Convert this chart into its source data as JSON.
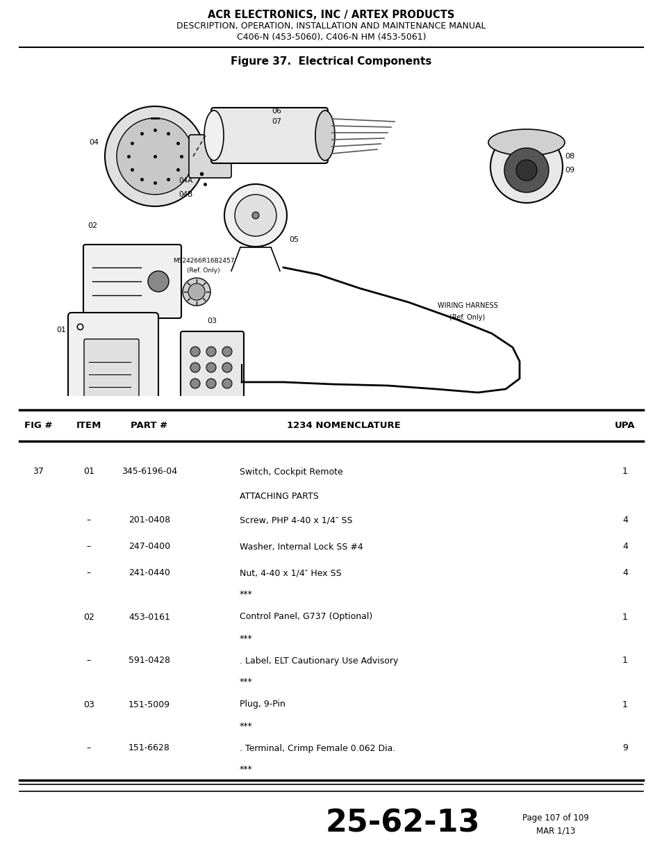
{
  "header_line1": "ACR ELECTRONICS, INC / ARTEX PRODUCTS",
  "header_line2": "DESCRIPTION, OPERATION, INSTALLATION AND MAINTENANCE MANUAL",
  "header_line3": "C406-N (453-5060), C406-N HM (453-5061)",
  "figure_title": "Figure 37.  Electrical Components",
  "table_headers": [
    "FIG #",
    "ITEM",
    "PART #",
    "1234 NOMENCLATURE",
    "UPA"
  ],
  "table_rows": [
    [
      "37",
      "01",
      "345-6196-04",
      "Switch, Cockpit Remote",
      "1"
    ],
    [
      "",
      "",
      "",
      "ATTACHING PARTS",
      ""
    ],
    [
      "",
      "–",
      "201-0408",
      "Screw, PHP 4-40 x 1/4″ SS",
      "4"
    ],
    [
      "",
      "–",
      "247-0400",
      "Washer, Internal Lock SS #4",
      "4"
    ],
    [
      "",
      "–",
      "241-0440",
      "Nut, 4-40 x 1/4″ Hex SS",
      "4"
    ],
    [
      "",
      "",
      "",
      "***",
      ""
    ],
    [
      "",
      "02",
      "453-0161",
      "Control Panel, G737 (Optional)",
      "1"
    ],
    [
      "",
      "",
      "",
      "***",
      ""
    ],
    [
      "",
      "–",
      "591-0428",
      ". Label, ELT Cautionary Use Advisory",
      "1"
    ],
    [
      "",
      "",
      "",
      "***",
      ""
    ],
    [
      "",
      "03",
      "151-5009",
      "Plug, 9-Pin",
      "1"
    ],
    [
      "",
      "",
      "",
      "***",
      ""
    ],
    [
      "",
      "–",
      "151-6628",
      ". Terminal, Crimp Female 0.062 Dia.",
      "9"
    ],
    [
      "",
      "",
      "",
      "***",
      ""
    ]
  ],
  "footer_code": "25-62-13",
  "footer_page": "Page 107 of 109",
  "footer_date": "MAR 1/13",
  "bg_color": "#ffffff"
}
